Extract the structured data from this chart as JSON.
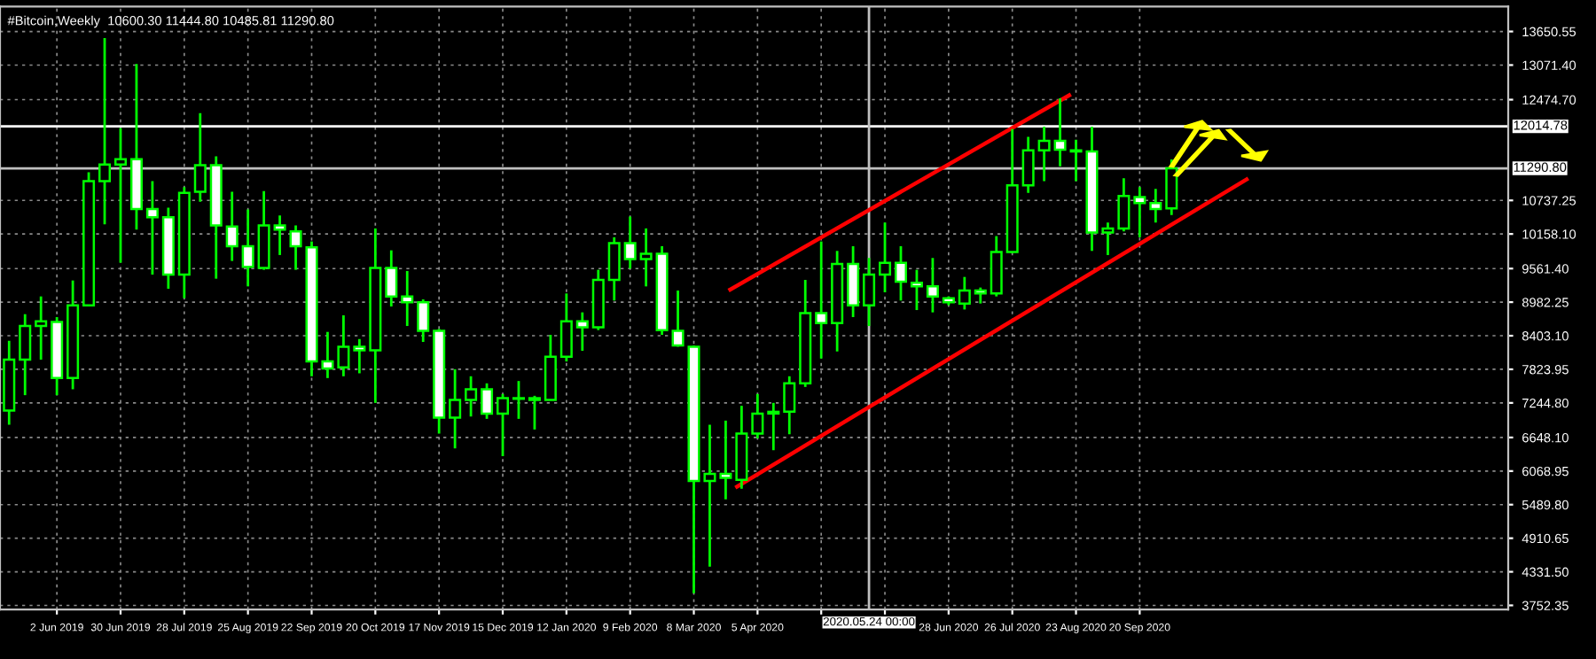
{
  "chart_data": {
    "type": "candlestick",
    "title": "#Bitcoin,Weekly  10600.30 11444.80 10485.81 11290.80",
    "color": "#00ff00",
    "x": [
      "2019-05-12",
      "2019-05-19",
      "2019-05-26",
      "2019-06-02",
      "2019-06-09",
      "2019-06-16",
      "2019-06-23",
      "2019-06-30",
      "2019-07-07",
      "2019-07-14",
      "2019-07-21",
      "2019-07-28",
      "2019-08-04",
      "2019-08-11",
      "2019-08-18",
      "2019-08-25",
      "2019-09-01",
      "2019-09-08",
      "2019-09-15",
      "2019-09-22",
      "2019-09-29",
      "2019-10-06",
      "2019-10-13",
      "2019-10-20",
      "2019-10-27",
      "2019-11-03",
      "2019-11-10",
      "2019-11-17",
      "2019-11-24",
      "2019-12-01",
      "2019-12-08",
      "2019-12-15",
      "2019-12-22",
      "2019-12-29",
      "2020-01-05",
      "2020-01-12",
      "2020-01-19",
      "2020-01-26",
      "2020-02-02",
      "2020-02-09",
      "2020-02-16",
      "2020-02-23",
      "2020-03-01",
      "2020-03-08",
      "2020-03-15",
      "2020-03-22",
      "2020-03-29",
      "2020-04-05",
      "2020-04-12",
      "2020-04-19",
      "2020-04-26",
      "2020-05-03",
      "2020-05-10",
      "2020-05-17",
      "2020-05-24",
      "2020-05-31",
      "2020-06-07",
      "2020-06-14",
      "2020-06-21",
      "2020-06-28",
      "2020-07-05",
      "2020-07-12",
      "2020-07-19",
      "2020-07-26",
      "2020-08-02",
      "2020-08-09",
      "2020-08-16",
      "2020-08-23",
      "2020-08-30",
      "2020-09-06",
      "2020-09-13",
      "2020-09-20",
      "2020-09-27",
      "2020-10-04"
    ],
    "ohlc": [
      [
        7112,
        8316,
        6868,
        7990
      ],
      [
        7990,
        8775,
        7378,
        8571
      ],
      [
        8571,
        9081,
        7990,
        8652
      ],
      [
        8642,
        8724,
        7378,
        7673
      ],
      [
        7673,
        9356,
        7480,
        8928
      ],
      [
        8928,
        11223,
        8908,
        11070
      ],
      [
        11070,
        13538,
        10325,
        11356
      ],
      [
        11356,
        11988,
        9662,
        11447
      ],
      [
        11447,
        13090,
        10234,
        10590
      ],
      [
        10590,
        11070,
        9458,
        10448
      ],
      [
        10448,
        10611,
        9214,
        9458
      ],
      [
        9458,
        10968,
        9050,
        10866
      ],
      [
        10886,
        12243,
        10713,
        11345
      ],
      [
        11345,
        11498,
        9387,
        10305
      ],
      [
        10285,
        10886,
        9693,
        9948
      ],
      [
        9948,
        10580,
        9254,
        9591
      ],
      [
        9571,
        10897,
        9540,
        10305
      ],
      [
        10305,
        10478,
        9795,
        10234
      ],
      [
        10203,
        10305,
        9540,
        9948
      ],
      [
        9927,
        10029,
        7704,
        7959
      ],
      [
        7959,
        8469,
        7673,
        7837
      ],
      [
        7857,
        8755,
        7704,
        8214
      ],
      [
        8214,
        8346,
        7755,
        8153
      ],
      [
        8153,
        10254,
        7245,
        9571
      ],
      [
        9571,
        9876,
        8908,
        9081
      ],
      [
        9081,
        9520,
        8571,
        8979
      ],
      [
        8979,
        9030,
        8296,
        8489
      ],
      [
        8489,
        8520,
        6715,
        6990
      ],
      [
        6990,
        7826,
        6460,
        7296
      ],
      [
        7296,
        7704,
        7010,
        7480
      ],
      [
        7480,
        7582,
        6970,
        7061
      ],
      [
        7061,
        7398,
        6327,
        7326
      ],
      [
        7326,
        7622,
        6970,
        7316
      ],
      [
        7296,
        7367,
        6786,
        7326
      ],
      [
        7296,
        8418,
        7290,
        8041
      ],
      [
        8041,
        9132,
        7959,
        8652
      ],
      [
        8652,
        8806,
        8143,
        8550
      ],
      [
        8550,
        9540,
        8500,
        9366
      ],
      [
        9366,
        10101,
        9010,
        9999
      ],
      [
        9999,
        10458,
        9560,
        9724
      ],
      [
        9724,
        10254,
        9254,
        9815
      ],
      [
        9815,
        9948,
        8418,
        8500
      ],
      [
        8489,
        9183,
        8214,
        8234
      ],
      [
        8214,
        8234,
        3961,
        5899
      ],
      [
        5899,
        6868,
        4419,
        6021
      ],
      [
        6021,
        6939,
        5582,
        5950
      ],
      [
        5919,
        7194,
        5766,
        6715
      ],
      [
        6715,
        7398,
        6633,
        7061
      ],
      [
        7061,
        7245,
        6429,
        7091
      ],
      [
        7092,
        7704,
        6704,
        7582
      ],
      [
        7582,
        9366,
        7520,
        8795
      ],
      [
        8795,
        10029,
        8010,
        8622
      ],
      [
        8622,
        9866,
        8132,
        9642
      ],
      [
        9642,
        9948,
        8724,
        8928
      ],
      [
        8928,
        9744,
        8571,
        9458
      ],
      [
        9458,
        10356,
        9152,
        9662
      ],
      [
        9662,
        9948,
        9010,
        9336
      ],
      [
        9316,
        9540,
        8846,
        9254
      ],
      [
        9254,
        9744,
        8806,
        9081
      ],
      [
        9050,
        9081,
        8928,
        8979
      ],
      [
        8959,
        9417,
        8856,
        9183
      ],
      [
        9183,
        9234,
        8959,
        9132
      ],
      [
        9132,
        10121,
        9081,
        9846
      ],
      [
        9846,
        11968,
        9825,
        10998
      ],
      [
        10998,
        11835,
        10866,
        11600
      ],
      [
        11600,
        12008,
        11070,
        11764
      ],
      [
        11764,
        12498,
        11325,
        11611
      ],
      [
        11600,
        11784,
        11070,
        11580
      ],
      [
        11580,
        12008,
        9866,
        10183
      ],
      [
        10183,
        10356,
        9795,
        10254
      ],
      [
        10254,
        11121,
        10203,
        10815
      ],
      [
        10795,
        10968,
        10101,
        10692
      ],
      [
        10692,
        10937,
        10356,
        10590
      ],
      [
        10600.3,
        11444.8,
        10485.81,
        11290.8
      ]
    ],
    "series": [
      {
        "type": "line",
        "x": [
          "2020-03-24",
          "2020-08-20"
        ],
        "values": [
          9200,
          12550
        ],
        "color": "#ff0000"
      },
      {
        "type": "line",
        "x": [
          "2020-03-27",
          "2020-11-06"
        ],
        "values": [
          5800,
          11100
        ],
        "color": "#ff0000"
      }
    ],
    "ref_lines": [
      {
        "axis": "y",
        "value": 12014.78,
        "label": "12014.78",
        "color": "#ffffff"
      },
      {
        "axis": "y",
        "value": 11290.8,
        "label": "11290.80",
        "color": "#c0c0c0"
      },
      {
        "axis": "x",
        "value": "2020-05-24",
        "label": "2020.05.24 00:00",
        "color": "#c0c0c0"
      }
    ],
    "xlim": [
      "2019-05-08",
      "2021-03-01"
    ],
    "xticks": [
      {
        "value": "2019-06-02",
        "label": "2 Jun 2019"
      },
      {
        "value": "2019-06-30",
        "label": "30 Jun 2019"
      },
      {
        "value": "2019-07-28",
        "label": "28 Jul 2019"
      },
      {
        "value": "2019-08-25",
        "label": "25 Aug 2019"
      },
      {
        "value": "2019-09-22",
        "label": "22 Sep 2019"
      },
      {
        "value": "2019-10-20",
        "label": "20 Oct 2019"
      },
      {
        "value": "2019-11-17",
        "label": "17 Nov 2019"
      },
      {
        "value": "2019-12-15",
        "label": "15 Dec 2019"
      },
      {
        "value": "2020-01-12",
        "label": "12 Jan 2020"
      },
      {
        "value": "2020-02-09",
        "label": "9 Feb 2020"
      },
      {
        "value": "2020-03-08",
        "label": "8 Mar 2020"
      },
      {
        "value": "2020-04-05",
        "label": "5 Apr 2020"
      },
      {
        "value": "2020-05-03",
        "label": null
      },
      {
        "value": "2020-05-31",
        "label": null
      },
      {
        "value": "2020-06-28",
        "label": "28 Jun 2020"
      },
      {
        "value": "2020-07-26",
        "label": "26 Jul 2020"
      },
      {
        "value": "2020-08-23",
        "label": "23 Aug 2020"
      },
      {
        "value": "2020-09-20",
        "label": "20 Sep 2020"
      }
    ],
    "ylim": [
      3680,
      14080
    ],
    "yticks": [
      3752.35,
      {
        "value": 4331.5,
        "label": "4331.50"
      },
      4910.65,
      {
        "value": 5489.8,
        "label": "5489.80"
      },
      6068.95,
      {
        "value": 6648.1,
        "label": "6648.10"
      },
      {
        "value": 7244.8,
        "label": "7244.80"
      },
      7823.95,
      {
        "value": 8403.1,
        "label": "8403.10"
      },
      8982.25,
      {
        "value": 9561.4,
        "label": "9561.40"
      },
      {
        "value": 10158.1,
        "label": "10158.10"
      },
      10737.25,
      {
        "value": 12474.7,
        "label": "12474.70"
      },
      {
        "value": 13071.4,
        "label": "13071.40"
      },
      13650.55
    ],
    "grid": true
  }
}
